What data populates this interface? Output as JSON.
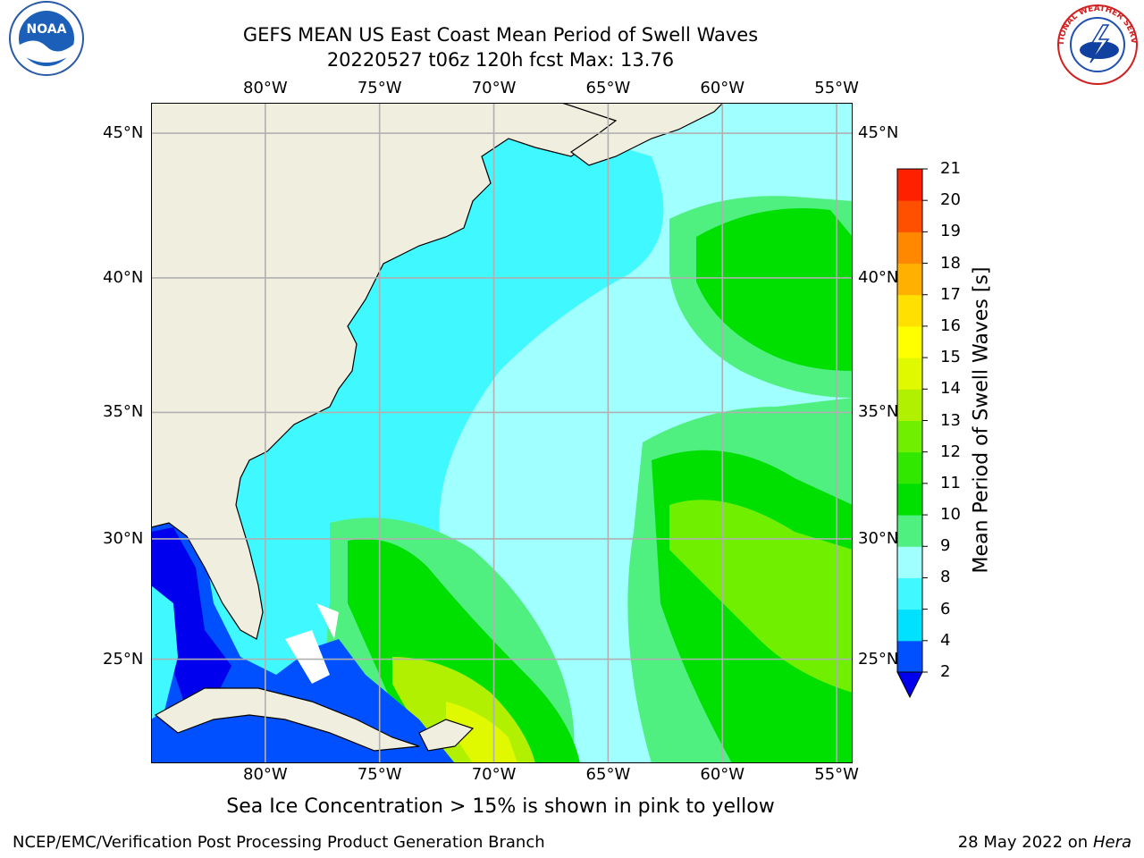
{
  "title": {
    "line1": "GEFS MEAN US East Coast Mean Period of Swell Waves",
    "line2": "20220527 t06z 120h fcst   Max: 13.76"
  },
  "map": {
    "lon_labels": [
      "80°W",
      "75°W",
      "70°W",
      "65°W",
      "60°W",
      "55°W"
    ],
    "lat_labels": [
      "45°N",
      "40°N",
      "35°N",
      "30°N",
      "25°N"
    ],
    "lon_range": [
      -85,
      -54.3
    ],
    "lat_range": [
      20.5,
      46
    ]
  },
  "colorbar": {
    "label": "Mean Period of Swell Waves [s]",
    "ticks": [
      "2",
      "4",
      "6",
      "8",
      "9",
      "10",
      "11",
      "12",
      "13",
      "14",
      "15",
      "16",
      "17",
      "18",
      "19",
      "20",
      "21"
    ],
    "colors": [
      "#0050ff",
      "#00e0ff",
      "#40f8ff",
      "#a0ffff",
      "#50f080",
      "#00e000",
      "#30e800",
      "#70f000",
      "#b0f000",
      "#e0f800",
      "#ffff00",
      "#ffe000",
      "#ffb000",
      "#ff8800",
      "#ff5000",
      "#ff2000"
    ],
    "under_color": "#0000ee"
  },
  "subtitle": "Sea Ice Concentration > 15% is shown in pink to yellow",
  "footer": {
    "left": "NCEP/EMC/Verification Post Processing Product Generation Branch",
    "right_prefix": "28 May 2022 on",
    "right_host": "Hera"
  },
  "logos": {
    "noaa": "NOAA",
    "nws": "NATIONAL WEATHER SERVICE"
  }
}
